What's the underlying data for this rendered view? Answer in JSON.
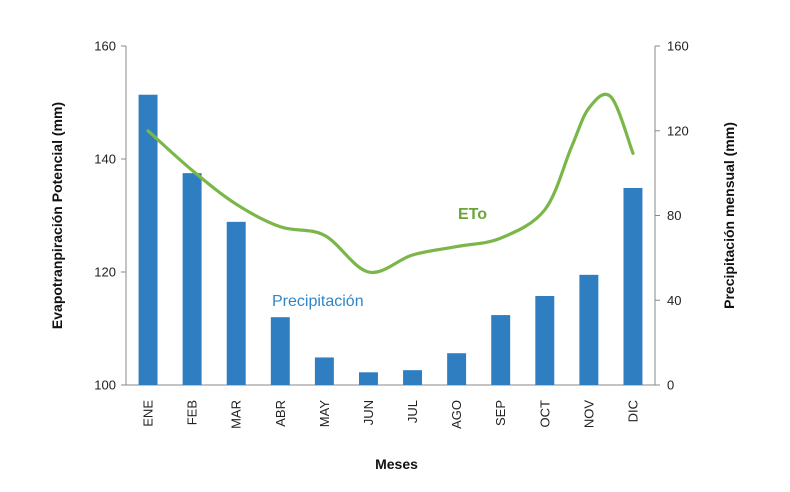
{
  "chart_data": {
    "type": "bar+line",
    "categories": [
      "ENE",
      "FEB",
      "MAR",
      "ABR",
      "MAY",
      "JUN",
      "JUL",
      "AGO",
      "SEP",
      "OCT",
      "NOV",
      "DIC"
    ],
    "xlabel": "Meses",
    "ylabel_left": "Evapotranpiración  Potencial (mm)",
    "ylabel_right": "Precipitación mensual (mm)",
    "ylim_left": [
      100,
      160
    ],
    "yticks_left": [
      100,
      120,
      140,
      160
    ],
    "ylim_right": [
      0,
      160
    ],
    "yticks_right": [
      0,
      40,
      80,
      120,
      160
    ],
    "grid": false,
    "series": [
      {
        "name": "Precipitación",
        "type": "bar",
        "axis": "right",
        "color": "#2E7EC1",
        "label_color": "#2E86C8",
        "values": [
          137,
          100,
          77,
          32,
          13,
          6,
          7,
          15,
          33,
          42,
          52,
          93
        ]
      },
      {
        "name": "ETo",
        "type": "line",
        "axis": "left",
        "color": "#7AB648",
        "label_color": "#6AA43A",
        "values": [
          145,
          138,
          132,
          128,
          126.5,
          120,
          123,
          124.5,
          126,
          131,
          149,
          141
        ],
        "extra_points": [
          {
            "after_index": 9,
            "fraction": 0.6,
            "value": 142
          },
          {
            "after_index": 10,
            "fraction": 0.5,
            "value": 151
          }
        ]
      }
    ]
  }
}
